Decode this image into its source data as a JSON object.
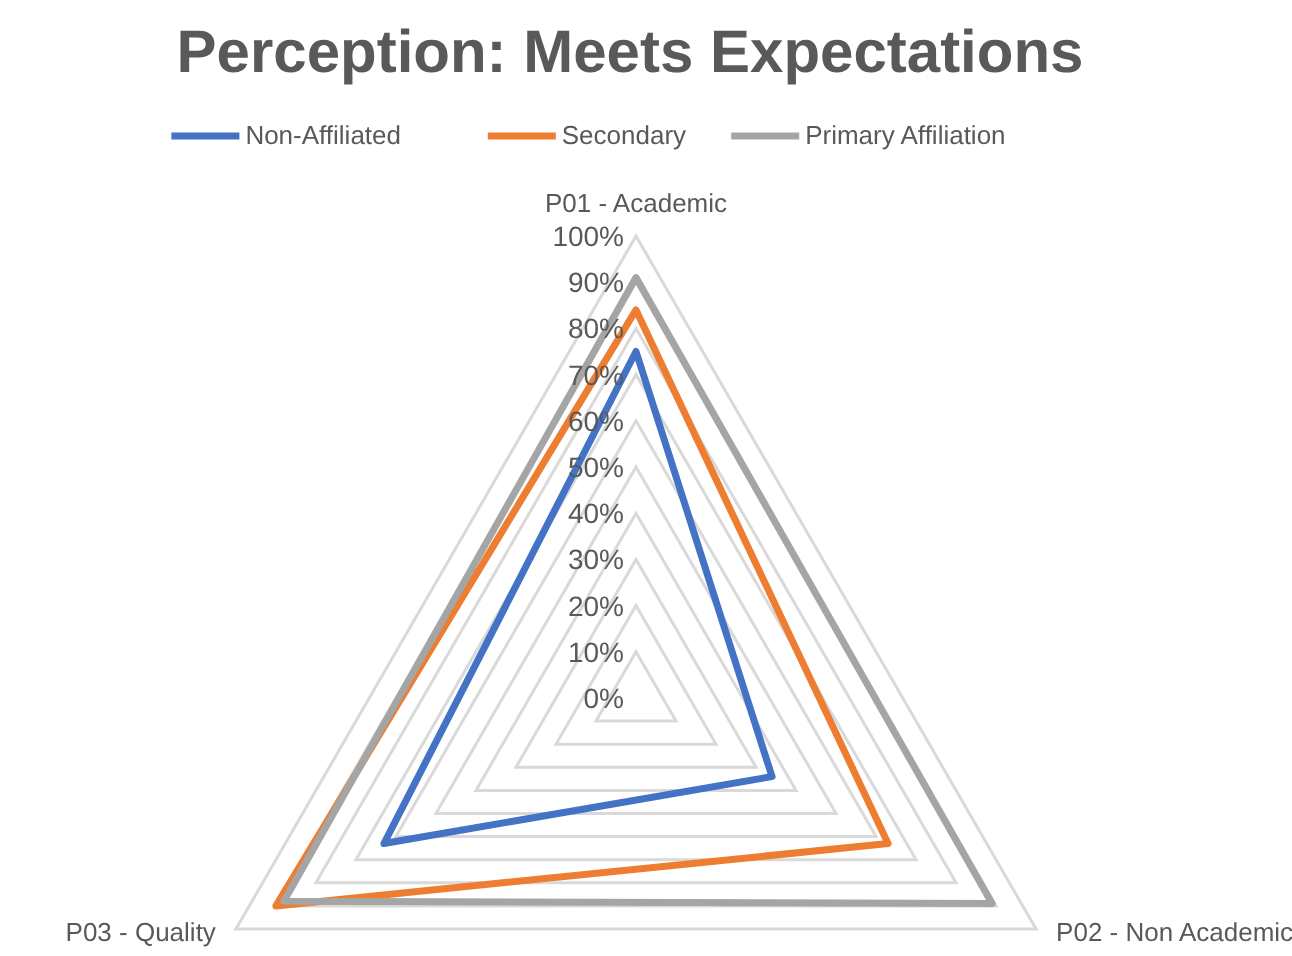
{
  "chart_data": {
    "type": "radar",
    "title": "Perception: Meets Expectations",
    "categories": [
      "P01 - Academic",
      "P02 - Non Academic",
      "P03 - Quality"
    ],
    "series": [
      {
        "name": "Non-Affiliated",
        "color": "#4472c4",
        "values": [
          75,
          34,
          63
        ]
      },
      {
        "name": "Secondary",
        "color": "#ed7d31",
        "values": [
          84,
          63,
          90
        ]
      },
      {
        "name": "Primary Affiliation",
        "color": "#a5a5a5",
        "values": [
          91,
          89,
          88
        ]
      }
    ],
    "ylim": [
      0,
      100
    ],
    "yticks": [
      {
        "value": 0,
        "label": "0%"
      },
      {
        "value": 10,
        "label": "10%"
      },
      {
        "value": 20,
        "label": "20%"
      },
      {
        "value": 30,
        "label": "30%"
      },
      {
        "value": 40,
        "label": "40%"
      },
      {
        "value": 50,
        "label": "50%"
      },
      {
        "value": 60,
        "label": "60%"
      },
      {
        "value": 70,
        "label": "70%"
      },
      {
        "value": 80,
        "label": "80%"
      },
      {
        "value": 90,
        "label": "90%"
      },
      {
        "value": 100,
        "label": "100%"
      }
    ],
    "grid": true,
    "legend": "top"
  }
}
